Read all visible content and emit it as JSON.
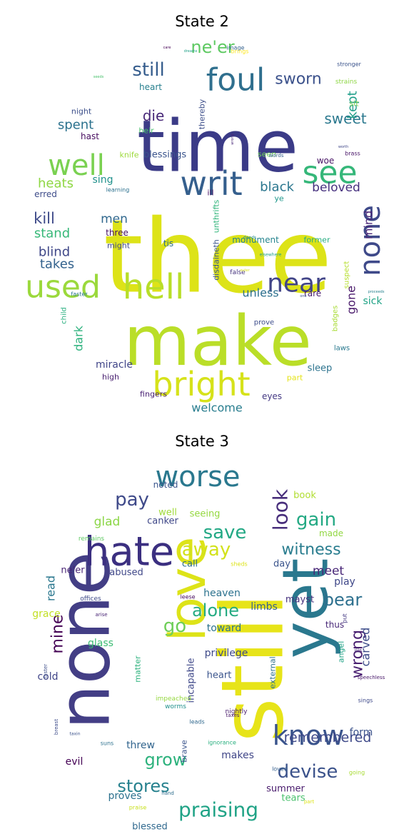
{
  "panels": [
    {
      "title": "State 2",
      "words": [
        {
          "t": "thee",
          "c": "#dde318"
        },
        {
          "t": "time",
          "c": "#3b3b87"
        },
        {
          "t": "make",
          "c": "#bade28"
        },
        {
          "t": "hell",
          "c": "#b8de29"
        },
        {
          "t": "used",
          "c": "#9bd93c"
        },
        {
          "t": "bright",
          "c": "#d6e21a"
        },
        {
          "t": "foul",
          "c": "#2f6f8e"
        },
        {
          "t": "see",
          "c": "#35b779"
        },
        {
          "t": "writ",
          "c": "#355f8d"
        },
        {
          "t": "well",
          "c": "#7ad151"
        },
        {
          "t": "none",
          "c": "#3e4989"
        },
        {
          "t": "near",
          "c": "#414487"
        },
        {
          "t": "still",
          "c": "#365d8d"
        },
        {
          "t": "sworn",
          "c": "#3b518b"
        },
        {
          "t": "ne'er",
          "c": "#5ec962"
        },
        {
          "t": "sweet",
          "c": "#2a788e"
        },
        {
          "t": "kept",
          "c": "#1f9e89"
        },
        {
          "t": "spent",
          "c": "#2c728e"
        },
        {
          "t": "die",
          "c": "#482878"
        },
        {
          "t": "heats",
          "c": "#8fd744"
        },
        {
          "t": "sing",
          "c": "#21918c"
        },
        {
          "t": "black",
          "c": "#2a768e"
        },
        {
          "t": "beloved",
          "c": "#46307e"
        },
        {
          "t": "kill",
          "c": "#3e4a89"
        },
        {
          "t": "men",
          "c": "#31688e"
        },
        {
          "t": "stand",
          "c": "#37b878"
        },
        {
          "t": "blind",
          "c": "#3f4788"
        },
        {
          "t": "takes",
          "c": "#33628d"
        },
        {
          "t": "mind",
          "c": "#482475"
        },
        {
          "t": "unless",
          "c": "#2d708e"
        },
        {
          "t": "gone",
          "c": "#48186a"
        },
        {
          "t": "dark",
          "c": "#2db27d"
        },
        {
          "t": "sick",
          "c": "#20a386"
        },
        {
          "t": "welcome",
          "c": "#287d8e"
        },
        {
          "t": "miracle",
          "c": "#404588"
        },
        {
          "t": "sleep",
          "c": "#2c738e"
        },
        {
          "t": "eyes",
          "c": "#443983"
        },
        {
          "t": "high",
          "c": "#481f70"
        },
        {
          "t": "fingers",
          "c": "#482173"
        },
        {
          "t": "blessings",
          "c": "#3a548c"
        },
        {
          "t": "knife",
          "c": "#9dd93b"
        },
        {
          "t": "heir",
          "c": "#4ac16d"
        },
        {
          "t": "hast",
          "c": "#460b5e"
        },
        {
          "t": "heart",
          "c": "#277f8e"
        },
        {
          "t": "night",
          "c": "#3c4f8a"
        },
        {
          "t": "thereby",
          "c": "#3d4e8a"
        },
        {
          "t": "seen",
          "c": "#6ece58"
        },
        {
          "t": "woe",
          "c": "#471365"
        },
        {
          "t": "erred",
          "c": "#3e4c8a"
        },
        {
          "t": "three",
          "c": "#471164"
        },
        {
          "t": "tis",
          "c": "#2e6f8e"
        },
        {
          "t": "might",
          "c": "#3f4889"
        },
        {
          "t": "monument",
          "c": "#25848e"
        },
        {
          "t": "former",
          "c": "#26ad81"
        },
        {
          "t": "rare",
          "c": "#481b6d"
        },
        {
          "t": "disdaineth",
          "c": "#3a538b"
        },
        {
          "t": "unthrifts",
          "c": "#31b57b"
        },
        {
          "t": "prove",
          "c": "#3d4d8a"
        },
        {
          "t": "badges",
          "c": "#a8db34"
        },
        {
          "t": "laws",
          "c": "#29798e"
        },
        {
          "t": "part",
          "c": "#e5e419"
        },
        {
          "t": "child",
          "c": "#29af7f"
        },
        {
          "t": "faster",
          "c": "#2a788e"
        },
        {
          "t": "suspect",
          "c": "#b5de2b"
        },
        {
          "t": "false",
          "c": "#45337d"
        },
        {
          "t": "ill",
          "c": "#471063"
        },
        {
          "t": "ye",
          "c": "#1f988b"
        },
        {
          "t": "learning",
          "c": "#2c718e"
        },
        {
          "t": "sit",
          "c": "#7fd34e"
        },
        {
          "t": "brass",
          "c": "#481467"
        },
        {
          "t": "words",
          "c": "#355e8d"
        },
        {
          "t": "stronger",
          "c": "#3a538b"
        },
        {
          "t": "strains",
          "c": "#8ed645"
        },
        {
          "t": "image",
          "c": "#34618d"
        },
        {
          "t": "brings",
          "c": "#fde725"
        },
        {
          "t": "dreams",
          "c": "#1fa088"
        },
        {
          "t": "care",
          "c": "#440154"
        },
        {
          "t": "seeds",
          "c": "#4ac16d"
        },
        {
          "t": "one",
          "c": "#3b528b"
        },
        {
          "t": "worth",
          "c": "#3f4788"
        },
        {
          "t": "wrong",
          "c": "#482878"
        },
        {
          "t": "elsewhere",
          "c": "#1fa187"
        },
        {
          "t": "proceeds",
          "c": "#26828e"
        },
        {
          "t": "outer",
          "c": "#dde318"
        },
        {
          "t": "deeds",
          "c": "#23898e"
        }
      ]
    },
    {
      "title": "State 3",
      "words": [
        {
          "t": "still",
          "c": "#e7e419"
        },
        {
          "t": "none",
          "c": "#433e85"
        },
        {
          "t": "yet",
          "c": "#2a788e"
        },
        {
          "t": "love",
          "c": "#dde318"
        },
        {
          "t": "hate",
          "c": "#3b2f80"
        },
        {
          "t": "worse",
          "c": "#2a788e"
        },
        {
          "t": "know",
          "c": "#3a548c"
        },
        {
          "t": "look",
          "c": "#472d7b"
        },
        {
          "t": "praising",
          "c": "#20a386"
        },
        {
          "t": "devise",
          "c": "#3b528b"
        },
        {
          "t": "stores",
          "c": "#26818e"
        },
        {
          "t": "grow",
          "c": "#2db27d"
        },
        {
          "t": "pay",
          "c": "#3e4989"
        },
        {
          "t": "gain",
          "c": "#23a983"
        },
        {
          "t": "save",
          "c": "#22a884"
        },
        {
          "t": "witness",
          "c": "#287c8e"
        },
        {
          "t": "away",
          "c": "#d2e21b"
        },
        {
          "t": "alone",
          "c": "#25ab82"
        },
        {
          "t": "bear",
          "c": "#2d708e"
        },
        {
          "t": "mine",
          "c": "#440154"
        },
        {
          "t": "go",
          "c": "#6ece58"
        },
        {
          "t": "wrong",
          "c": "#481f70"
        },
        {
          "t": "remembered",
          "c": "#3e4989"
        },
        {
          "t": "meet",
          "c": "#482677"
        },
        {
          "t": "play",
          "c": "#3f4788"
        },
        {
          "t": "carved",
          "c": "#3d4d8a"
        },
        {
          "t": "read",
          "c": "#2a778e"
        },
        {
          "t": "form",
          "c": "#3b528b"
        },
        {
          "t": "privilege",
          "c": "#3e4989"
        },
        {
          "t": "makes",
          "c": "#404688"
        },
        {
          "t": "heaven",
          "c": "#2c728e"
        },
        {
          "t": "toward",
          "c": "#2c738e"
        },
        {
          "t": "limbs",
          "c": "#355f8d"
        },
        {
          "t": "glad",
          "c": "#8bd646"
        },
        {
          "t": "canker",
          "c": "#3f4788"
        },
        {
          "t": "well",
          "c": "#a0da39"
        },
        {
          "t": "seeing",
          "c": "#95d840"
        },
        {
          "t": "noted",
          "c": "#3a548c"
        },
        {
          "t": "book",
          "c": "#b0dd2f"
        },
        {
          "t": "made",
          "c": "#91d742"
        },
        {
          "t": "ne'er",
          "c": "#482475"
        },
        {
          "t": "abused",
          "c": "#3f4788"
        },
        {
          "t": "call",
          "c": "#2e6e8e"
        },
        {
          "t": "day",
          "c": "#3a548c"
        },
        {
          "t": "mayst",
          "c": "#46327e"
        },
        {
          "t": "thus",
          "c": "#482878"
        },
        {
          "t": "grace",
          "c": "#c2df23"
        },
        {
          "t": "glass",
          "c": "#3dbc74"
        },
        {
          "t": "cold",
          "c": "#404588"
        },
        {
          "t": "heart",
          "c": "#3a548c"
        },
        {
          "t": "threw",
          "c": "#32658e"
        },
        {
          "t": "evil",
          "c": "#440154"
        },
        {
          "t": "proves",
          "c": "#2c718e"
        },
        {
          "t": "summer",
          "c": "#481a6c"
        },
        {
          "t": "tears",
          "c": "#4ac16d"
        },
        {
          "t": "blessed",
          "c": "#30698e"
        },
        {
          "t": "incapable",
          "c": "#3f4889"
        },
        {
          "t": "matter",
          "c": "#2db27d"
        },
        {
          "t": "brave",
          "c": "#3a548c"
        },
        {
          "t": "external",
          "c": "#2d708e"
        },
        {
          "t": "angel",
          "c": "#20a386"
        },
        {
          "t": "remains",
          "c": "#5ec962"
        },
        {
          "t": "offices",
          "c": "#3e4a89"
        },
        {
          "t": "impeached",
          "c": "#95d840"
        },
        {
          "t": "nightly",
          "c": "#481b6d"
        },
        {
          "t": "leads",
          "c": "#31688e"
        },
        {
          "t": "worms",
          "c": "#21918c"
        },
        {
          "t": "arise",
          "c": "#482475"
        },
        {
          "t": "leese",
          "c": "#460a5d"
        },
        {
          "t": "sheds",
          "c": "#dde318"
        },
        {
          "t": "ignorance",
          "c": "#29af7f"
        },
        {
          "t": "loved",
          "c": "#355f8d"
        },
        {
          "t": "going",
          "c": "#a8db34"
        },
        {
          "t": "sings",
          "c": "#3e4989"
        },
        {
          "t": "speechless",
          "c": "#481769"
        },
        {
          "t": "ills",
          "c": "#482878"
        },
        {
          "t": "put",
          "c": "#443983"
        },
        {
          "t": "taxes",
          "c": "#471365"
        },
        {
          "t": "faster",
          "c": "#3d4e8a"
        },
        {
          "t": "breast",
          "c": "#3e4c8a"
        },
        {
          "t": "suns",
          "c": "#2c718e"
        },
        {
          "t": "hand",
          "c": "#2e6e8e"
        },
        {
          "t": "praise",
          "c": "#c8e020"
        },
        {
          "t": "part",
          "c": "#dde318"
        },
        {
          "t": "taxin",
          "c": "#3b528b"
        }
      ]
    }
  ]
}
